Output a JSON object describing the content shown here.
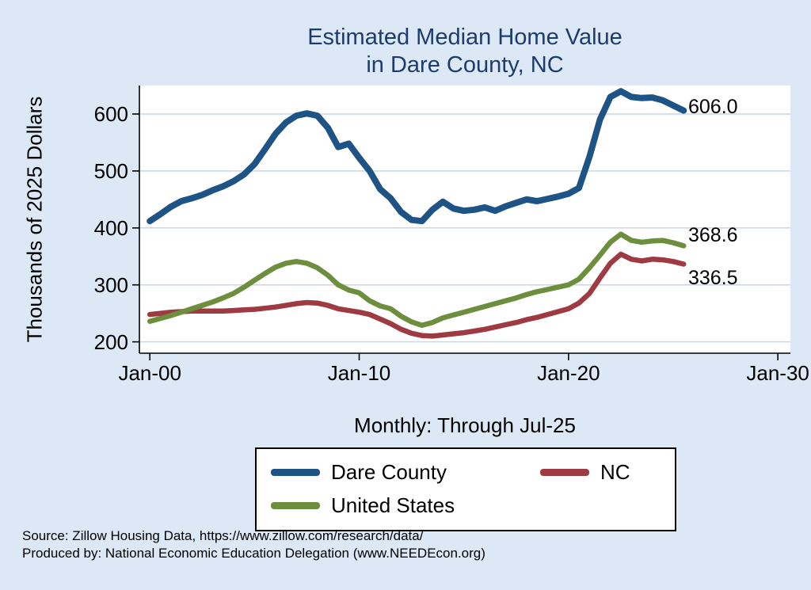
{
  "title": {
    "line1": "Estimated Median Home Value",
    "line2": "in Dare County, NC"
  },
  "ylabel": "Thousands of 2025 Dollars",
  "xnote": "Monthly: Through Jul-25",
  "end_labels": {
    "dare_county": "606.0",
    "united_states": "368.6",
    "nc": "336.5"
  },
  "legend": [
    {
      "label": "Dare County",
      "color": "#1e5386"
    },
    {
      "label": "NC",
      "color": "#9e3a42"
    },
    {
      "label": "United States",
      "color": "#6d8e3c"
    }
  ],
  "source_line1": "Source: Zillow Housing Data, https://www.zillow.com/research/data/",
  "source_line2": "Produced by: National Economic Education Delegation (www.NEEDEcon.org)",
  "colors": {
    "background": "#dce8f5",
    "plot_background": "#ffffff",
    "grid": "#c7d6e8",
    "axis": "#000000",
    "title": "#1c3c6e",
    "dare_county": "#1e5386",
    "nc": "#9e3a42",
    "united_states": "#6d8e3c"
  },
  "chart_data": {
    "type": "line",
    "title": "Estimated Median Home Value in Dare County, NC",
    "xlabel": "Monthly: Through Jul-25",
    "ylabel": "Thousands of 2025 Dollars",
    "xlim": [
      1999.5,
      2030.6
    ],
    "ylim": [
      180,
      650
    ],
    "grid": true,
    "legend_position": "below",
    "xticks": [
      2000,
      2010,
      2020,
      2030
    ],
    "xtick_labels": [
      "Jan-00",
      "Jan-10",
      "Jan-20",
      "Jan-30"
    ],
    "yticks": [
      200,
      300,
      400,
      500,
      600
    ],
    "ytick_labels": [
      "200",
      "300",
      "400",
      "500",
      "600"
    ],
    "x": [
      2000,
      2000.5,
      2001,
      2001.5,
      2002,
      2002.5,
      2003,
      2003.5,
      2004,
      2004.5,
      2005,
      2005.5,
      2006,
      2006.5,
      2007,
      2007.5,
      2008,
      2008.5,
      2009,
      2009.5,
      2010,
      2010.5,
      2011,
      2011.5,
      2012,
      2012.5,
      2013,
      2013.5,
      2014,
      2014.5,
      2015,
      2015.5,
      2016,
      2016.5,
      2017,
      2017.5,
      2018,
      2018.5,
      2019,
      2019.5,
      2020,
      2020.5,
      2021,
      2021.5,
      2022,
      2022.5,
      2023,
      2023.5,
      2024,
      2024.5,
      2025,
      2025.5
    ],
    "series": [
      {
        "name": "Dare County",
        "color": "#1e5386",
        "final_label": 606.0,
        "values": [
          412,
          424,
          437,
          447,
          452,
          458,
          466,
          473,
          482,
          494,
          512,
          538,
          565,
          585,
          597,
          601,
          597,
          576,
          542,
          548,
          523,
          500,
          468,
          452,
          428,
          414,
          412,
          432,
          446,
          434,
          430,
          432,
          436,
          430,
          438,
          444,
          450,
          447,
          451,
          455,
          460,
          470,
          525,
          590,
          630,
          640,
          630,
          628,
          629,
          624,
          615,
          606
        ]
      },
      {
        "name": "NC",
        "color": "#9e3a42",
        "final_label": 336.5,
        "values": [
          248,
          250,
          252,
          253,
          254,
          254,
          254,
          254,
          255,
          256,
          257,
          259,
          261,
          264,
          267,
          269,
          268,
          264,
          258,
          255,
          252,
          248,
          240,
          232,
          222,
          215,
          211,
          210,
          212,
          214,
          216,
          219,
          222,
          226,
          230,
          234,
          239,
          243,
          248,
          253,
          258,
          268,
          285,
          312,
          338,
          354,
          345,
          342,
          345,
          344,
          341,
          336.5
        ]
      },
      {
        "name": "United States",
        "color": "#6d8e3c",
        "final_label": 368.6,
        "values": [
          236,
          241,
          246,
          252,
          258,
          264,
          270,
          277,
          285,
          296,
          308,
          320,
          331,
          338,
          341,
          338,
          330,
          317,
          300,
          291,
          286,
          272,
          263,
          258,
          245,
          235,
          229,
          234,
          242,
          247,
          252,
          257,
          262,
          267,
          272,
          277,
          283,
          288,
          292,
          296,
          300,
          310,
          330,
          352,
          375,
          389,
          378,
          375,
          377,
          378,
          374,
          368.6
        ]
      }
    ]
  }
}
